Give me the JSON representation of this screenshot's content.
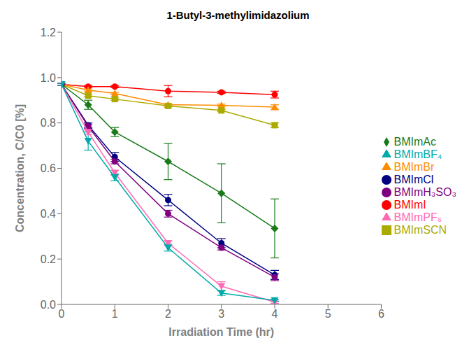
{
  "chart_data": {
    "type": "line",
    "title": "1-Butyl-3-methylimidazolium",
    "xlabel": "Irradiation Time (hr)",
    "ylabel": "Concentration, C/C0 [%]",
    "x": [
      0,
      0.5,
      1,
      2,
      3,
      4
    ],
    "xlim": [
      0,
      6
    ],
    "xticks": [
      0,
      1,
      2,
      3,
      4,
      5,
      6
    ],
    "ylim": [
      0.0,
      1.2
    ],
    "yticks": [
      {
        "value": 0.0,
        "label": "0.0"
      },
      0.2,
      0.4,
      0.6,
      0.8,
      {
        "value": 1.0,
        "label": "1.0"
      },
      1.2
    ],
    "legend": "right",
    "series": [
      {
        "name": "BMImI",
        "color": "#FF0000",
        "marker": "circle",
        "values": [
          0.97,
          0.96,
          0.96,
          0.94,
          0.935,
          0.925
        ],
        "yerr": [
          0.005,
          0.005,
          0.005,
          0.025,
          0.005,
          0.015
        ]
      },
      {
        "name": "BMImBr",
        "color": "#FF8C00",
        "marker": "triangle",
        "values": [
          0.97,
          0.945,
          0.93,
          0.88,
          0.878,
          0.87
        ],
        "yerr": [
          0.005,
          0.005,
          0.005,
          0.005,
          0.005,
          0.01
        ]
      },
      {
        "name": "BMImSCN",
        "color": "#AAAA00",
        "marker": "square",
        "values": [
          0.97,
          0.92,
          0.905,
          0.875,
          0.855,
          0.79
        ],
        "yerr": [
          0.005,
          0.005,
          0.005,
          0.005,
          0.005,
          0.01
        ]
      },
      {
        "name": "BMImAc",
        "color": "#1A7A1A",
        "marker": "diamond",
        "values": [
          0.97,
          0.88,
          0.76,
          0.63,
          0.49,
          0.335
        ],
        "yerr": [
          0.005,
          0.02,
          0.02,
          0.08,
          0.13,
          0.13
        ]
      },
      {
        "name": "BMImCl",
        "color": "#000080",
        "marker": "circle",
        "values": [
          0.97,
          0.79,
          0.65,
          0.46,
          0.27,
          0.13
        ],
        "yerr": [
          0.005,
          0.01,
          0.02,
          0.025,
          0.02,
          0.02
        ]
      },
      {
        "name": "BMImH₃SO₃",
        "color": "#800080",
        "marker": "circle",
        "values": [
          0.97,
          0.785,
          0.63,
          0.4,
          0.25,
          0.12
        ],
        "yerr": [
          0.005,
          0.01,
          0.01,
          0.015,
          0.01,
          0.015
        ]
      },
      {
        "name": "BMImPF₆",
        "color": "#FF69B4",
        "marker": "triangle-down",
        "values": [
          0.97,
          0.76,
          0.58,
          0.27,
          0.08,
          0.01
        ],
        "yerr": [
          0.005,
          0.01,
          0.01,
          0.01,
          0.02,
          0.005
        ]
      },
      {
        "name": "BMImBF₄",
        "color": "#00AAAA",
        "marker": "triangle-down",
        "values": [
          0.97,
          0.72,
          0.56,
          0.25,
          0.05,
          0.018
        ],
        "yerr": [
          0.005,
          0.04,
          0.015,
          0.015,
          0.01,
          0.005
        ]
      }
    ]
  }
}
